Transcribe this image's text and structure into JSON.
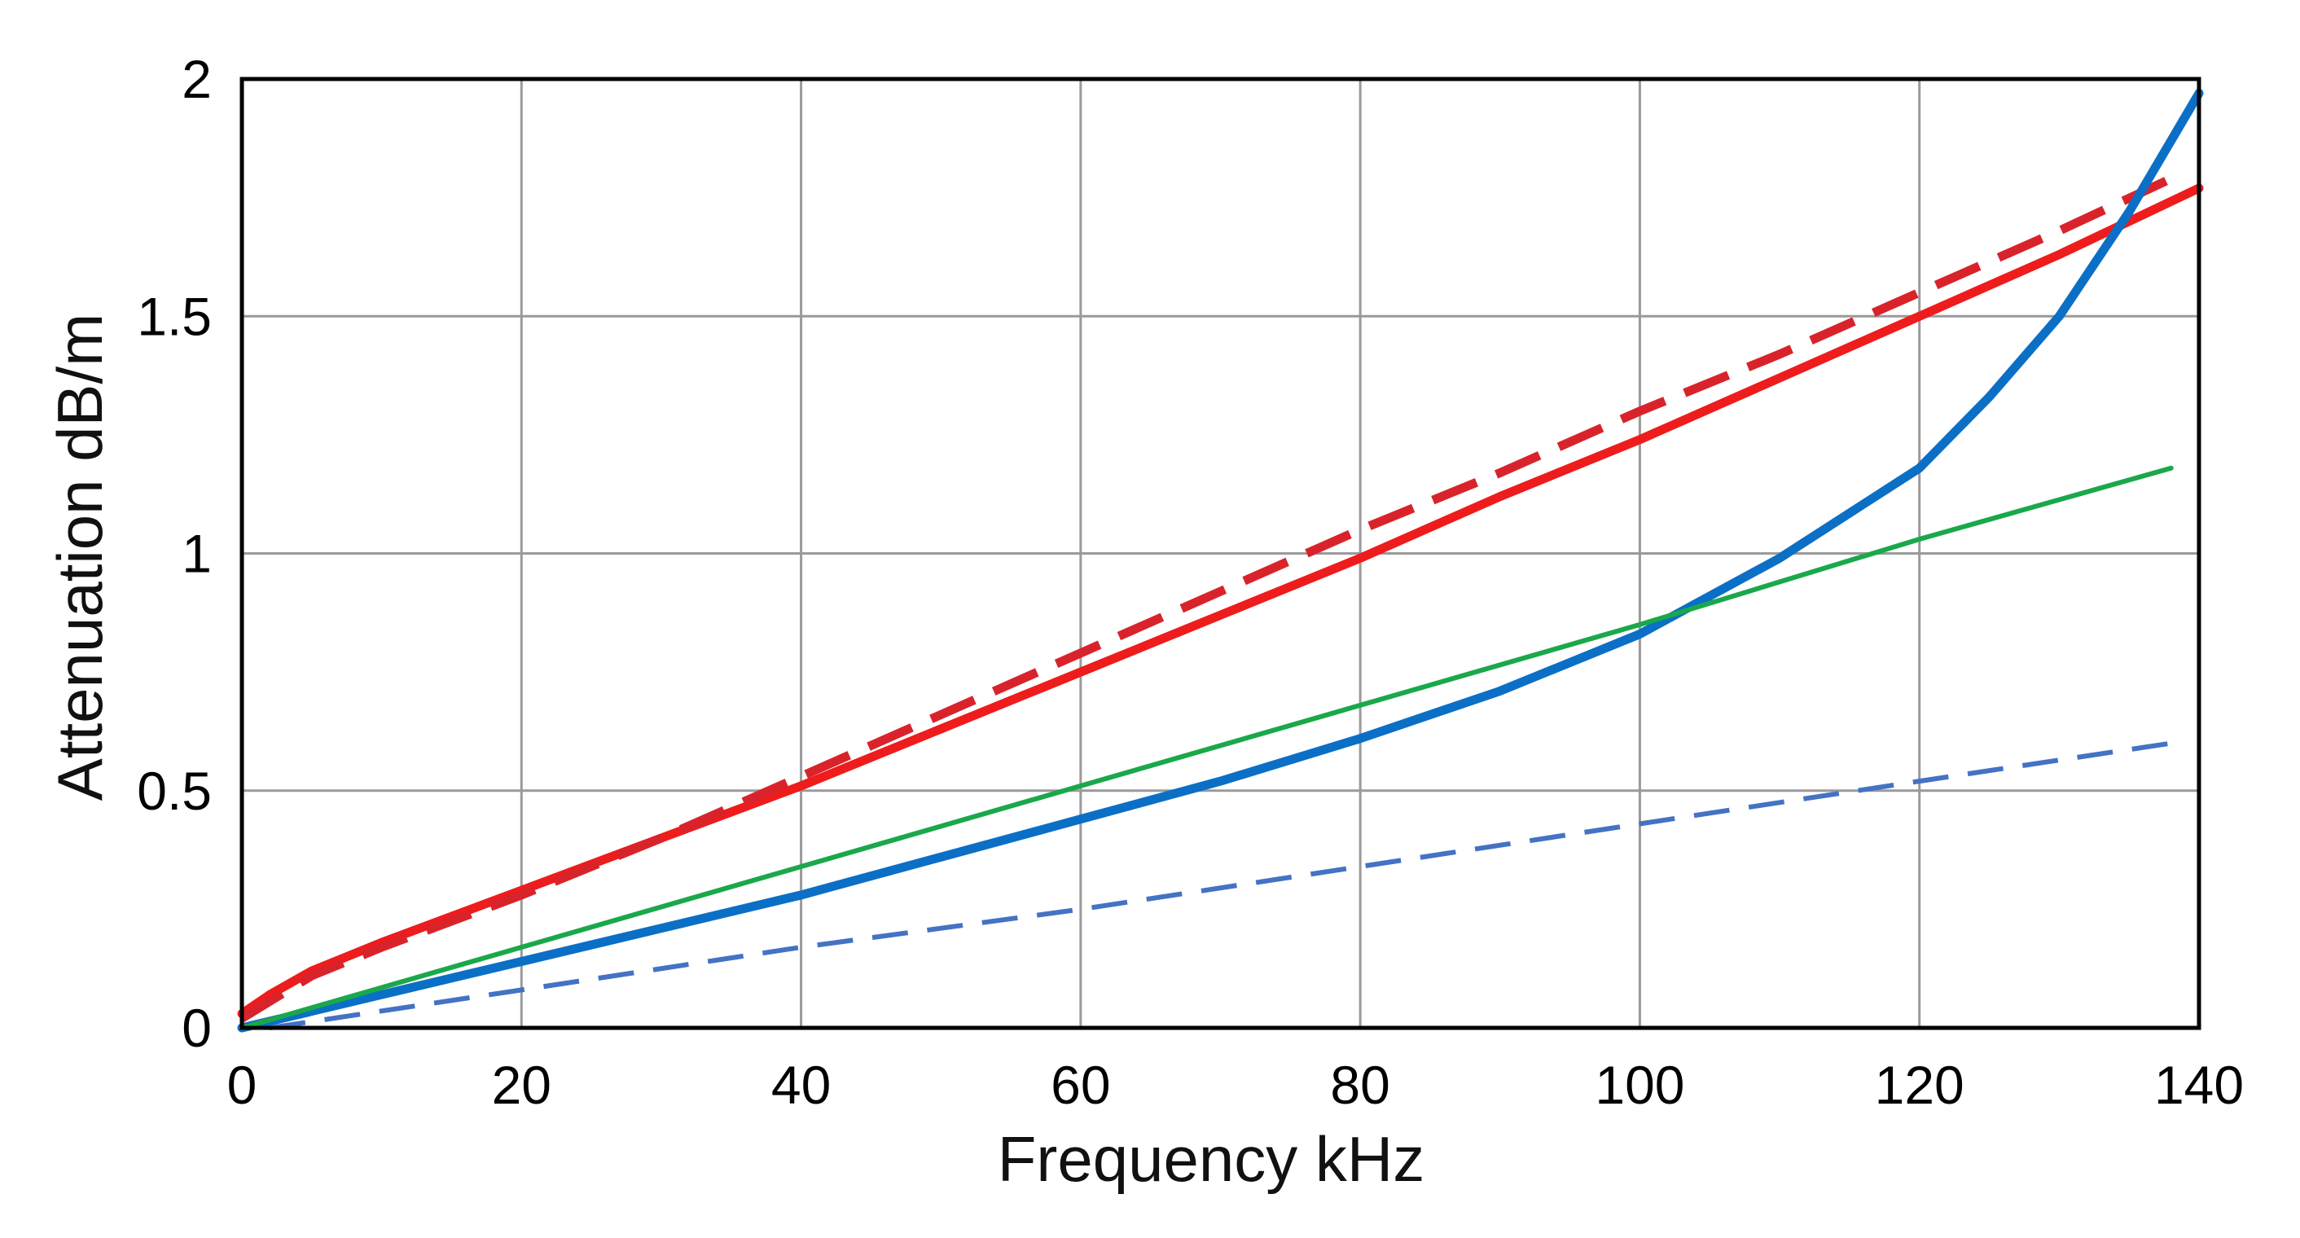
{
  "chart_data": {
    "type": "line",
    "title": "",
    "xlabel": "Frequency  kHz",
    "ylabel": "Attenuation  dB/m",
    "xlim": [
      0,
      140
    ],
    "ylim": [
      0,
      2
    ],
    "x_ticks": [
      "0",
      "20",
      "40",
      "60",
      "80",
      "100",
      "120",
      "140"
    ],
    "y_ticks": [
      "0",
      "0.5",
      "1",
      "1.5",
      "2"
    ],
    "grid": true,
    "legend": "none",
    "series": [
      {
        "name": "red-solid",
        "color": "#ee1c1c",
        "style": "solid",
        "weight": "thick",
        "x": [
          0,
          2,
          5,
          10,
          20,
          30,
          40,
          50,
          60,
          70,
          80,
          90,
          100,
          110,
          120,
          130,
          140
        ],
        "y": [
          0.03,
          0.07,
          0.12,
          0.18,
          0.29,
          0.4,
          0.51,
          0.63,
          0.75,
          0.87,
          0.99,
          1.12,
          1.24,
          1.37,
          1.5,
          1.63,
          1.77
        ]
      },
      {
        "name": "red-dashed",
        "color": "#d9232b",
        "style": "dashed",
        "weight": "thick",
        "x": [
          0,
          5,
          10,
          20,
          30,
          40,
          50,
          60,
          70,
          80,
          90,
          100,
          110,
          120,
          130,
          138
        ],
        "y": [
          0.02,
          0.11,
          0.17,
          0.28,
          0.4,
          0.53,
          0.66,
          0.79,
          0.92,
          1.05,
          1.17,
          1.3,
          1.42,
          1.55,
          1.68,
          1.79
        ]
      },
      {
        "name": "blue-solid",
        "color": "#0b6fc6",
        "style": "solid",
        "weight": "thick",
        "x": [
          0,
          10,
          20,
          30,
          40,
          50,
          60,
          70,
          80,
          90,
          100,
          110,
          120,
          125,
          130,
          135,
          140
        ],
        "y": [
          0.0,
          0.07,
          0.14,
          0.21,
          0.28,
          0.36,
          0.44,
          0.52,
          0.61,
          0.71,
          0.83,
          0.99,
          1.18,
          1.33,
          1.5,
          1.72,
          1.97
        ]
      },
      {
        "name": "green-solid",
        "color": "#1aa84a",
        "style": "solid",
        "weight": "thin",
        "x": [
          0,
          20,
          40,
          60,
          80,
          100,
          120,
          138
        ],
        "y": [
          0.0,
          0.17,
          0.34,
          0.51,
          0.68,
          0.85,
          1.03,
          1.18
        ]
      },
      {
        "name": "blue-dashed",
        "color": "#4472c4",
        "style": "dashed",
        "weight": "thin",
        "x": [
          2,
          20,
          40,
          60,
          80,
          100,
          120,
          138
        ],
        "y": [
          0.0,
          0.08,
          0.17,
          0.25,
          0.34,
          0.43,
          0.52,
          0.6
        ]
      }
    ]
  }
}
